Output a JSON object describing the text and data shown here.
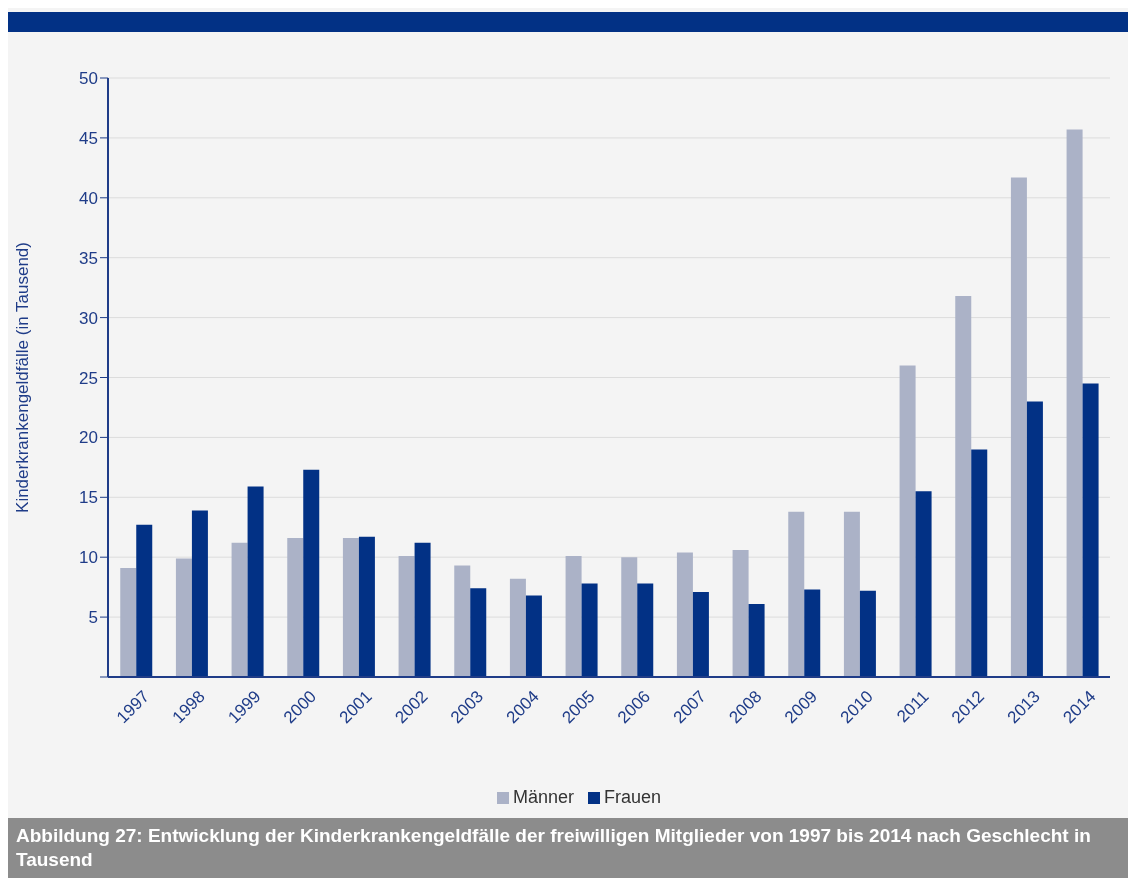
{
  "chart_data": {
    "type": "bar",
    "ylabel": "Kinderkrankengeldfälle (in Tausend)",
    "categories": [
      "1997",
      "1998",
      "1999",
      "2000",
      "2001",
      "2002",
      "2003",
      "2004",
      "2005",
      "2006",
      "2007",
      "2008",
      "2009",
      "2010",
      "2011",
      "2012",
      "2013",
      "2014"
    ],
    "series": [
      {
        "name": "Männer",
        "color": "#abb2c7",
        "values": [
          9.1,
          9.9,
          11.2,
          11.6,
          11.6,
          10.1,
          9.3,
          8.2,
          10.1,
          10.0,
          10.4,
          10.6,
          13.8,
          13.8,
          26.0,
          31.8,
          41.7,
          45.7
        ]
      },
      {
        "name": "Frauen",
        "color": "#023185",
        "values": [
          12.7,
          13.9,
          15.9,
          17.3,
          11.7,
          11.2,
          7.4,
          6.8,
          7.8,
          7.8,
          7.1,
          6.1,
          7.3,
          7.2,
          15.5,
          19.0,
          23.0,
          24.5
        ]
      }
    ],
    "ylim": [
      0,
      50
    ],
    "yticks": [
      {
        "value": 0,
        "label": null
      },
      5,
      10,
      15,
      20,
      25,
      30,
      35,
      40,
      45,
      50
    ],
    "grid": "y",
    "legend": "bottom",
    "annotations": [
      "Abbildung 27: Entwicklung der Kinderkrankengeldfälle der freiwilligen Mitglieder von 1997 bis 2014 nach Geschlecht in Tausend"
    ]
  }
}
